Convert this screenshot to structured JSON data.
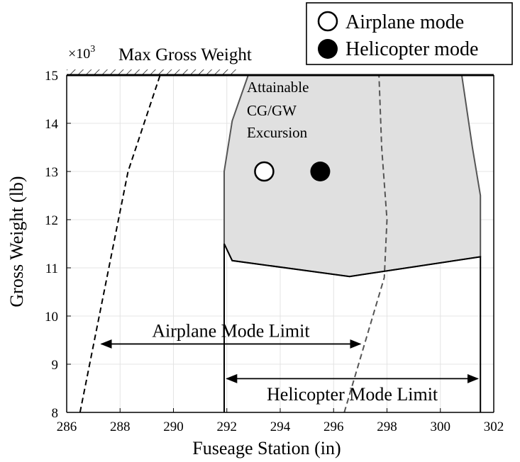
{
  "chart_data": {
    "type": "line",
    "xlabel": "Fuseage Station (in)",
    "ylabel": "Gross Weight (lb)",
    "y_multiplier_label": "×10",
    "y_multiplier_exponent": "3",
    "xlim": [
      286,
      302
    ],
    "ylim": [
      8,
      15
    ],
    "xticks": [
      286,
      288,
      290,
      292,
      294,
      296,
      298,
      300,
      302
    ],
    "yticks": [
      8,
      9,
      10,
      11,
      12,
      13,
      14,
      15
    ],
    "grid": true,
    "legend_position": "top-right",
    "legend": [
      {
        "label": "Airplane mode",
        "marker": "open-circle"
      },
      {
        "label": "Helicopter mode",
        "marker": "filled-circle"
      }
    ],
    "points": [
      {
        "name": "Airplane mode",
        "x": 293.4,
        "y": 13.0,
        "filled": false
      },
      {
        "name": "Helicopter mode",
        "x": 295.5,
        "y": 13.0,
        "filled": true
      }
    ],
    "max_gross_weight": {
      "label": "Max Gross Weight",
      "y": 15
    },
    "excursion_region": {
      "label_lines": [
        "Attainable",
        "CG/GW",
        "Excursion"
      ],
      "color": "#e0e0e0",
      "edge_color": "#555555",
      "polygon": [
        [
          291.9,
          11.5
        ],
        [
          292.2,
          11.15
        ],
        [
          296.6,
          10.82
        ],
        [
          301.5,
          11.23
        ],
        [
          301.5,
          12.5
        ],
        [
          301.2,
          13.5
        ],
        [
          300.8,
          15.0
        ],
        [
          292.8,
          15.0
        ],
        [
          292.2,
          14.05
        ],
        [
          291.9,
          13.0
        ]
      ]
    },
    "dashed_series": [
      {
        "points": [
          [
            286.5,
            8.0
          ],
          [
            288.3,
            13.0
          ],
          [
            289.5,
            15.0
          ]
        ]
      },
      {
        "points": [
          [
            296.4,
            8.0
          ],
          [
            297.9,
            10.8
          ],
          [
            298.0,
            12.0
          ],
          [
            297.8,
            13.5
          ],
          [
            297.7,
            15.0
          ]
        ],
        "color": "#555555"
      }
    ],
    "limit_lines": [
      {
        "points": [
          [
            291.9,
            8.0
          ],
          [
            291.9,
            11.5
          ],
          [
            292.2,
            11.15
          ],
          [
            296.6,
            10.82
          ],
          [
            301.5,
            11.23
          ],
          [
            301.5,
            8.0
          ]
        ]
      }
    ],
    "annotations": [
      {
        "text": "Airplane Mode Limit",
        "x_from": 287.3,
        "x_to": 297.0,
        "y": 9.42,
        "label_y": 9.7
      },
      {
        "text": "Helicopter Mode Limit",
        "x_from": 292.0,
        "x_to": 301.4,
        "y": 8.7,
        "label_y": 8.38
      }
    ]
  }
}
